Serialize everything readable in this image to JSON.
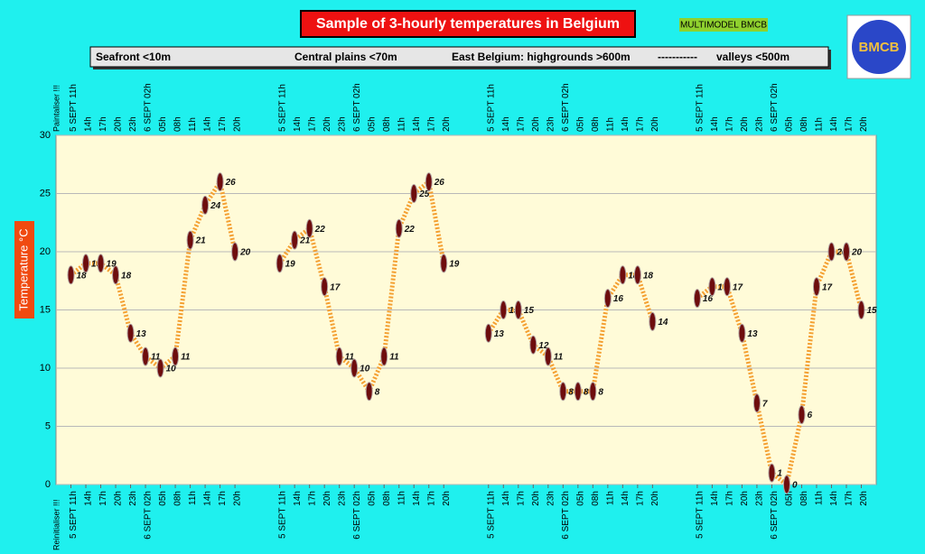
{
  "chart_data": {
    "type": "line",
    "title": "Sample of 3-hourly temperatures in Belgium",
    "model_tag": "MULTIMODEL BMCB",
    "logo_text": "BMCB",
    "header_separator": "-----------",
    "y_label": "Temperature    °C",
    "buttons": [
      "Paintaliser !!!",
      "Reinitialiser !!!"
    ],
    "categories": [
      "5 SEPT 11h",
      "14h",
      "17h",
      "20h",
      "23h",
      "6 SEPT 02h",
      "05h",
      "08h",
      "11h",
      "14h",
      "17h",
      "20h",
      null,
      null,
      "5 SEPT 11h",
      "14h",
      "17h",
      "20h",
      "23h",
      "6 SEPT 02h",
      "05h",
      "08h",
      "11h",
      "14h",
      "17h",
      "20h",
      null,
      null,
      "5 SEPT 11h",
      "14h",
      "17h",
      "20h",
      "23h",
      "6 SEPT 02h",
      "05h",
      "08h",
      "11h",
      "14h",
      "17h",
      "20h",
      null,
      null,
      "5 SEPT 11h",
      "14h",
      "17h",
      "20h",
      "23h",
      "6 SEPT 02h",
      "05h",
      "08h",
      "11h",
      "14h",
      "17h",
      "20h"
    ],
    "series": [
      {
        "name": "Seafront <10m",
        "color": "#f4a032",
        "marker_color": "#6e0d0d",
        "values": [
          18,
          19,
          19,
          18,
          13,
          11,
          10,
          11,
          21,
          24,
          26,
          20,
          null,
          null,
          null,
          null,
          null,
          null,
          null,
          null,
          null,
          null,
          null,
          null,
          null,
          null,
          null,
          null,
          null,
          null,
          null,
          null,
          null,
          null,
          null,
          null,
          null,
          null,
          null,
          null,
          null,
          null,
          null,
          null,
          null,
          null,
          null,
          null,
          null,
          null,
          null,
          null,
          null,
          null
        ]
      },
      {
        "name": "Central plains <70m",
        "color": "#f4a032",
        "marker_color": "#6e0d0d",
        "values": [
          null,
          null,
          null,
          null,
          null,
          null,
          null,
          null,
          null,
          null,
          null,
          null,
          null,
          null,
          19,
          21,
          22,
          17,
          11,
          10,
          8,
          11,
          22,
          25,
          26,
          19,
          null,
          null,
          null,
          null,
          null,
          null,
          null,
          null,
          null,
          null,
          null,
          null,
          null,
          null,
          null,
          null,
          null,
          null,
          null,
          null,
          null,
          null,
          null,
          null,
          null,
          null,
          null,
          null
        ]
      },
      {
        "name": "East Belgium: highgrounds >600m",
        "color": "#f4a032",
        "marker_color": "#6e0d0d",
        "values": [
          null,
          null,
          null,
          null,
          null,
          null,
          null,
          null,
          null,
          null,
          null,
          null,
          null,
          null,
          null,
          null,
          null,
          null,
          null,
          null,
          null,
          null,
          null,
          null,
          null,
          null,
          null,
          null,
          13,
          15,
          15,
          12,
          11,
          8,
          8,
          8,
          16,
          18,
          18,
          14,
          null,
          null,
          null,
          null,
          null,
          null,
          null,
          null,
          null,
          null,
          null,
          null,
          null,
          null
        ]
      },
      {
        "name": "valleys <500m",
        "color": "#f4a032",
        "marker_color": "#6e0d0d",
        "values": [
          null,
          null,
          null,
          null,
          null,
          null,
          null,
          null,
          null,
          null,
          null,
          null,
          null,
          null,
          null,
          null,
          null,
          null,
          null,
          null,
          null,
          null,
          null,
          null,
          null,
          null,
          null,
          null,
          null,
          null,
          null,
          null,
          null,
          null,
          null,
          null,
          null,
          null,
          null,
          null,
          null,
          null,
          16,
          17,
          17,
          13,
          7,
          1,
          0,
          6,
          17,
          20,
          20,
          15
        ]
      }
    ],
    "ylim": [
      0,
      30
    ],
    "yticks": [
      0,
      5,
      10,
      15,
      20,
      25,
      30
    ],
    "grid": true
  }
}
